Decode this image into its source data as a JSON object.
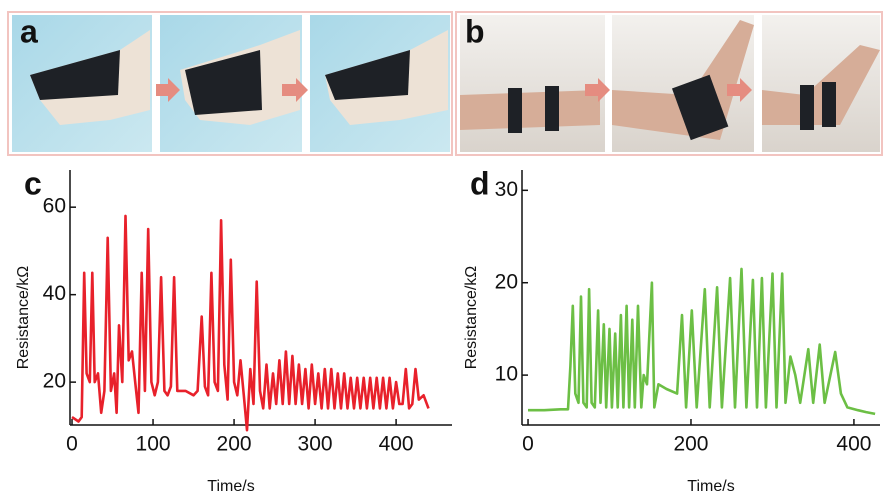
{
  "photo_panels": [
    {
      "label": "a"
    },
    {
      "label": "b"
    }
  ],
  "chart_data": [
    {
      "type": "line",
      "title": "c",
      "xlabel": "Time/s",
      "ylabel": "Resistance/kΩ",
      "x": [
        0,
        8,
        12,
        15,
        18,
        22,
        25,
        28,
        32,
        36,
        40,
        44,
        48,
        52,
        55,
        58,
        62,
        66,
        70,
        74,
        78,
        82,
        86,
        90,
        94,
        98,
        102,
        106,
        110,
        114,
        118,
        122,
        126,
        130,
        140,
        150,
        155,
        160,
        164,
        168,
        172,
        176,
        180,
        184,
        188,
        192,
        196,
        200,
        204,
        208,
        212,
        216,
        220,
        224,
        228,
        232,
        236,
        240,
        244,
        248,
        252,
        256,
        260,
        264,
        268,
        272,
        276,
        280,
        284,
        288,
        292,
        296,
        300,
        304,
        308,
        312,
        316,
        320,
        324,
        328,
        332,
        336,
        340,
        344,
        348,
        352,
        356,
        360,
        364,
        368,
        372,
        376,
        380,
        384,
        388,
        392,
        396,
        400,
        404,
        408,
        412,
        416,
        420,
        424,
        428,
        434,
        440
      ],
      "series": [
        {
          "color": "#e8212b",
          "values": [
            12,
            11,
            12,
            45,
            22,
            20,
            45,
            20,
            22,
            13,
            18,
            53,
            18,
            22,
            13,
            33,
            20,
            58,
            25,
            27,
            20,
            13,
            45,
            18,
            55,
            20,
            17,
            20,
            44,
            18,
            17,
            19,
            44,
            18,
            18,
            17,
            18,
            35,
            19,
            17,
            45,
            20,
            18,
            57,
            24,
            16,
            48,
            20,
            17,
            25,
            17,
            9,
            23,
            15,
            43,
            18,
            14,
            24,
            14,
            22,
            15,
            25,
            15,
            27,
            15,
            26,
            15,
            24,
            15,
            23,
            14,
            24,
            15,
            22,
            14,
            23,
            14,
            23,
            14,
            22,
            14,
            22,
            14,
            21,
            14,
            21,
            14,
            21,
            14,
            21,
            14,
            21,
            14,
            21,
            14,
            21,
            14,
            20,
            15,
            15,
            23,
            14,
            15,
            23,
            16,
            17,
            14
          ]
        }
      ],
      "xlim": [
        -2.5,
        469
      ],
      "ylim": [
        10.2,
        68.5
      ],
      "xticks": [
        0,
        100,
        200,
        300,
        400
      ],
      "yticks": [
        20,
        40,
        60
      ]
    },
    {
      "type": "line",
      "title": "d",
      "xlabel": "Time/s",
      "ylabel": "Resistance/kΩ",
      "x": [
        0,
        20,
        40,
        49,
        52,
        55,
        58,
        62,
        65,
        68,
        72,
        75,
        78,
        82,
        86,
        89,
        93,
        96,
        100,
        103,
        107,
        110,
        114,
        117,
        121,
        124,
        128,
        131,
        135,
        139,
        142,
        146,
        152,
        155,
        160,
        170,
        183,
        189,
        194,
        201,
        207,
        217,
        223,
        232,
        238,
        248,
        254,
        262,
        268,
        276,
        281,
        287,
        292,
        300,
        305,
        312,
        316,
        322,
        328,
        334,
        344,
        350,
        358,
        364,
        377,
        384,
        392,
        405,
        415,
        426
      ],
      "series": [
        {
          "color": "#6cbf45",
          "values": [
            6.2,
            6.2,
            6.3,
            6.3,
            11,
            17.5,
            8,
            7,
            18.5,
            7,
            6.5,
            19.3,
            7,
            6.5,
            17,
            7,
            15.5,
            6.5,
            15,
            6.5,
            14.5,
            6.5,
            16.5,
            6.5,
            17.5,
            6.5,
            16,
            6.5,
            17.5,
            6.5,
            10,
            9,
            20,
            6.5,
            9,
            8.5,
            8,
            16.5,
            6.5,
            17,
            6.5,
            19.3,
            6.5,
            19.5,
            6.5,
            20.5,
            6.5,
            21.5,
            6.5,
            20.3,
            6.5,
            20.5,
            6.5,
            21,
            6.5,
            21,
            7,
            12,
            10,
            7,
            12.8,
            7,
            13.3,
            7,
            12.5,
            8,
            6.5,
            6.2,
            6,
            5.8
          ]
        }
      ],
      "xlim": [
        -7.4,
        432
      ],
      "ylim": [
        4.6,
        32.2
      ],
      "xticks": [
        0,
        200,
        400
      ],
      "yticks": [
        10,
        20,
        30
      ]
    }
  ]
}
